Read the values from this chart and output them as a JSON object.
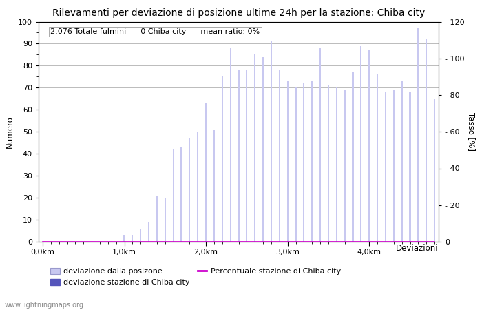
{
  "title": "Rilevamenti per deviazione di posizione ultime 24h per la stazione: Chiba city",
  "xlabel": "Deviazioni",
  "ylabel_left": "Numero",
  "ylabel_right": "Tasso [%]",
  "annotation": "2.076 Totale fulmini      0 Chiba city      mean ratio: 0%",
  "watermark": "www.lightningmaps.org",
  "bar_light_values": [
    0,
    0,
    0,
    0,
    0,
    0,
    0,
    0,
    0,
    0,
    3,
    3,
    6,
    9,
    21,
    20,
    42,
    43,
    47,
    50,
    63,
    51,
    75,
    88,
    78,
    78,
    85,
    84,
    91,
    78,
    73,
    70,
    72,
    73,
    88,
    71,
    70,
    69,
    77,
    89,
    87,
    76,
    68,
    69,
    73,
    68,
    97,
    92,
    65
  ],
  "bar_dark_values": [
    0,
    0,
    0,
    0,
    0,
    0,
    0,
    0,
    0,
    0,
    0,
    0,
    0,
    0,
    0,
    0,
    0,
    0,
    0,
    0,
    0,
    0,
    0,
    0,
    0,
    0,
    0,
    0,
    0,
    0,
    0,
    0,
    0,
    0,
    0,
    0,
    0,
    0,
    0,
    0,
    0,
    0,
    0,
    0,
    0,
    0,
    0,
    0,
    0
  ],
  "x_tick_positions": [
    0,
    10,
    20,
    30,
    40
  ],
  "x_tick_labels": [
    "0,0km",
    "1,0km",
    "2,0km",
    "3,0km",
    "4,0km"
  ],
  "ylim_left": [
    0,
    100
  ],
  "ylim_right": [
    0,
    120
  ],
  "yticks_left": [
    0,
    10,
    20,
    30,
    40,
    50,
    60,
    70,
    80,
    90,
    100
  ],
  "yticks_right": [
    0,
    20,
    40,
    60,
    80,
    100,
    120
  ],
  "bar_light_color": "#c8c8f0",
  "bar_dark_color": "#5555bb",
  "line_color": "#cc00cc",
  "background_color": "#ffffff",
  "grid_color": "#bbbbbb",
  "title_fontsize": 10,
  "label_fontsize": 8.5,
  "tick_fontsize": 8,
  "annotation_fontsize": 8
}
